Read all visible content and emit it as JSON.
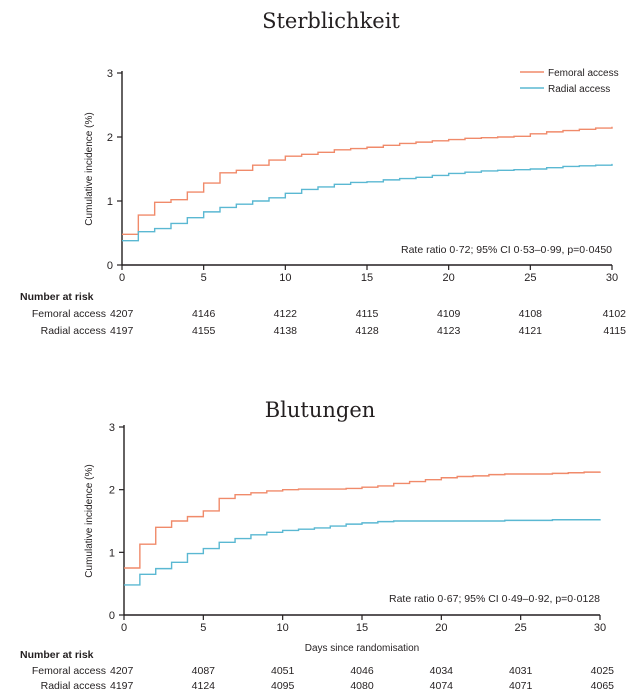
{
  "colors": {
    "femoral": "#f08a6a",
    "radial": "#5ab8d2",
    "axis": "#231f20"
  },
  "chart_data": [
    {
      "type": "line",
      "title": "Sterblichkeit",
      "xlabel": "",
      "ylabel": "Cumulative incidence (%)",
      "xlim": [
        0,
        30
      ],
      "ylim": [
        0,
        3
      ],
      "xticks": [
        0,
        5,
        10,
        15,
        20,
        25,
        30
      ],
      "yticks": [
        0,
        1,
        2,
        3
      ],
      "legend": "top-right",
      "annotation": "Rate ratio 0·72; 95% CI 0·53–0·99, p=0·0450",
      "series": [
        {
          "name": "Femoral access",
          "color_key": "femoral",
          "x": [
            0,
            1,
            2,
            3,
            4,
            5,
            6,
            7,
            8,
            9,
            10,
            11,
            12,
            13,
            14,
            15,
            16,
            17,
            18,
            19,
            20,
            21,
            22,
            23,
            24,
            25,
            26,
            27,
            28,
            29,
            30
          ],
          "y": [
            0.48,
            0.78,
            0.98,
            1.02,
            1.14,
            1.28,
            1.44,
            1.48,
            1.56,
            1.64,
            1.7,
            1.73,
            1.76,
            1.8,
            1.82,
            1.84,
            1.87,
            1.9,
            1.92,
            1.94,
            1.96,
            1.98,
            1.99,
            2.0,
            2.01,
            2.05,
            2.08,
            2.1,
            2.12,
            2.14,
            2.16
          ]
        },
        {
          "name": "Radial access",
          "color_key": "radial",
          "x": [
            0,
            1,
            2,
            3,
            4,
            5,
            6,
            7,
            8,
            9,
            10,
            11,
            12,
            13,
            14,
            15,
            16,
            17,
            18,
            19,
            20,
            21,
            22,
            23,
            24,
            25,
            26,
            27,
            28,
            29,
            30
          ],
          "y": [
            0.38,
            0.52,
            0.57,
            0.65,
            0.74,
            0.83,
            0.9,
            0.95,
            1.0,
            1.05,
            1.12,
            1.18,
            1.22,
            1.26,
            1.29,
            1.3,
            1.33,
            1.35,
            1.37,
            1.4,
            1.43,
            1.45,
            1.47,
            1.48,
            1.49,
            1.5,
            1.52,
            1.54,
            1.55,
            1.56,
            1.58
          ]
        }
      ],
      "risk_table": {
        "heading": "Number at risk",
        "days": [
          0,
          5,
          10,
          15,
          20,
          25,
          30
        ],
        "rows": [
          {
            "label": "Femoral access",
            "values": [
              "4207",
              "4146",
              "4122",
              "4115",
              "4109",
              "4108",
              "4102"
            ]
          },
          {
            "label": "Radial access",
            "values": [
              "4197",
              "4155",
              "4138",
              "4128",
              "4123",
              "4121",
              "4115"
            ]
          }
        ]
      }
    },
    {
      "type": "line",
      "title": "Blutungen",
      "xlabel": "Days since randomisation",
      "ylabel": "Cumulative incidence (%)",
      "xlim": [
        0,
        30
      ],
      "ylim": [
        0,
        3
      ],
      "xticks": [
        0,
        5,
        10,
        15,
        20,
        25,
        30
      ],
      "yticks": [
        0,
        1,
        2,
        3
      ],
      "annotation": "Rate ratio 0·67; 95% CI 0·49–0·92, p=0·0128",
      "series": [
        {
          "name": "Femoral access",
          "color_key": "femoral",
          "x": [
            0,
            1,
            2,
            3,
            4,
            5,
            6,
            7,
            8,
            9,
            10,
            11,
            12,
            13,
            14,
            15,
            16,
            17,
            18,
            19,
            20,
            21,
            22,
            23,
            24,
            25,
            26,
            27,
            28,
            29,
            30
          ],
          "y": [
            0.75,
            1.13,
            1.4,
            1.5,
            1.57,
            1.66,
            1.86,
            1.92,
            1.95,
            1.98,
            2.0,
            2.01,
            2.01,
            2.01,
            2.02,
            2.04,
            2.06,
            2.1,
            2.13,
            2.16,
            2.19,
            2.21,
            2.22,
            2.24,
            2.25,
            2.25,
            2.25,
            2.26,
            2.27,
            2.28,
            2.29
          ]
        },
        {
          "name": "Radial access",
          "color_key": "radial",
          "x": [
            0,
            1,
            2,
            3,
            4,
            5,
            6,
            7,
            8,
            9,
            10,
            11,
            12,
            13,
            14,
            15,
            16,
            17,
            18,
            19,
            20,
            21,
            22,
            23,
            24,
            25,
            26,
            27,
            28,
            29,
            30
          ],
          "y": [
            0.48,
            0.65,
            0.74,
            0.84,
            0.98,
            1.06,
            1.16,
            1.22,
            1.28,
            1.32,
            1.35,
            1.37,
            1.39,
            1.42,
            1.45,
            1.47,
            1.49,
            1.5,
            1.5,
            1.5,
            1.5,
            1.5,
            1.5,
            1.5,
            1.51,
            1.51,
            1.51,
            1.52,
            1.52,
            1.52,
            1.53
          ]
        }
      ],
      "risk_table": {
        "heading": "Number at risk",
        "days": [
          0,
          5,
          10,
          15,
          20,
          25,
          30
        ],
        "rows": [
          {
            "label": "Femoral access",
            "values": [
              "4207",
              "4087",
              "4051",
              "4046",
              "4034",
              "4031",
              "4025"
            ]
          },
          {
            "label": "Radial access",
            "values": [
              "4197",
              "4124",
              "4095",
              "4080",
              "4074",
              "4071",
              "4065"
            ]
          }
        ]
      }
    }
  ]
}
